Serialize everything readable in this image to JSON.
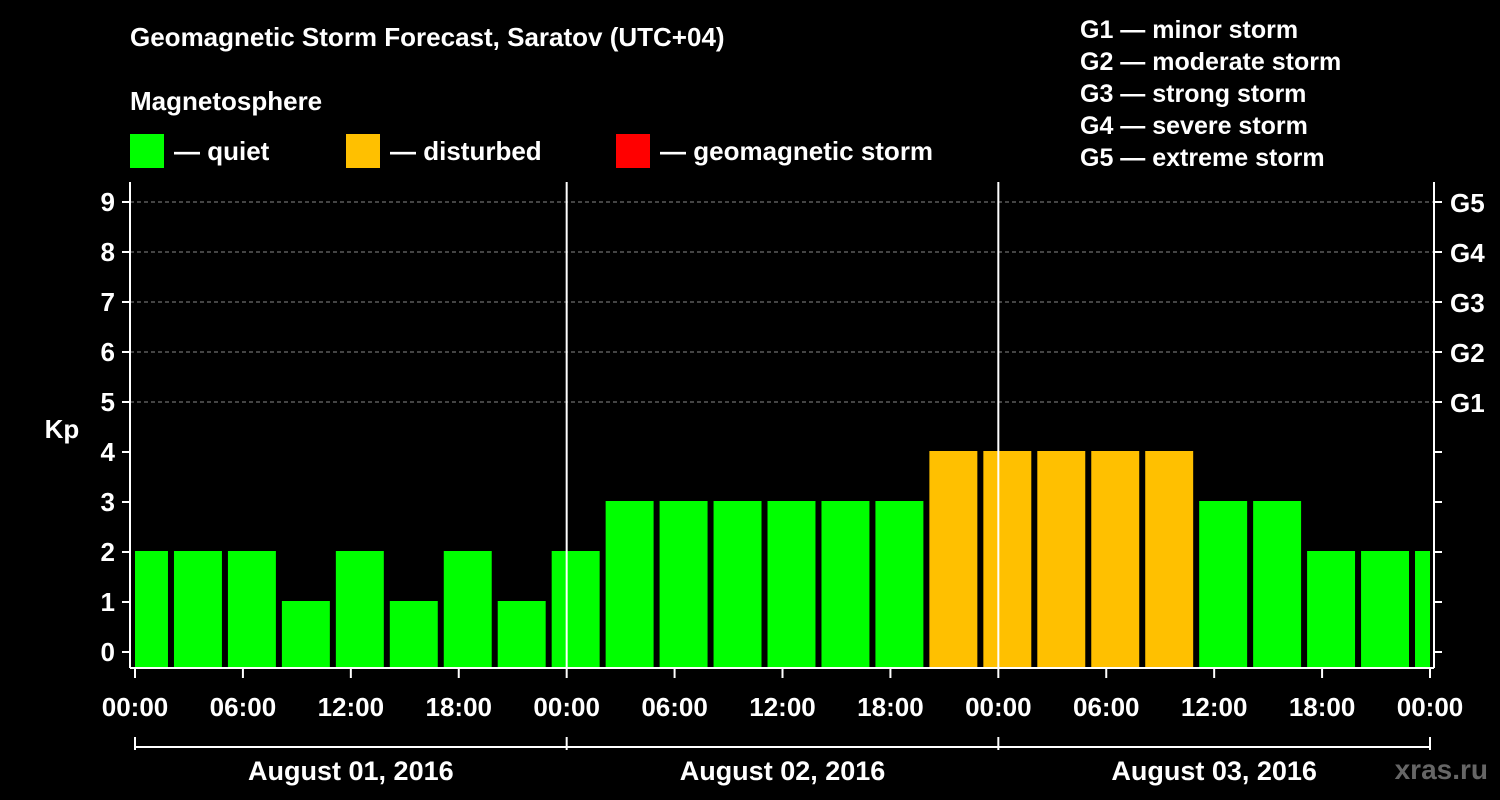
{
  "title": "Geomagnetic Storm Forecast, Saratov (UTC+04)",
  "legend": {
    "heading": "Magnetosphere",
    "items": [
      {
        "label": "— quiet",
        "color": "#00ff00"
      },
      {
        "label": "— disturbed",
        "color": "#ffc000"
      },
      {
        "label": "— geomagnetic storm",
        "color": "#ff0000"
      }
    ]
  },
  "storm_scale": [
    "G1 — minor storm",
    "G2 — moderate storm",
    "G3 — strong storm",
    "G4 — severe storm",
    "G5 — extreme storm"
  ],
  "watermark": "xras.ru",
  "chart_data": {
    "type": "bar",
    "ylabel": "Kp",
    "ylim": [
      0,
      9
    ],
    "y_ticks": [
      0,
      1,
      2,
      3,
      4,
      5,
      6,
      7,
      8,
      9
    ],
    "right_ticks": [
      {
        "kp": 5,
        "label": "G1"
      },
      {
        "kp": 6,
        "label": "G2"
      },
      {
        "kp": 7,
        "label": "G3"
      },
      {
        "kp": 8,
        "label": "G4"
      },
      {
        "kp": 9,
        "label": "G5"
      }
    ],
    "x_tick_labels": [
      "00:00",
      "06:00",
      "12:00",
      "18:00",
      "00:00",
      "06:00",
      "12:00",
      "18:00",
      "00:00",
      "06:00",
      "12:00",
      "18:00",
      "00:00"
    ],
    "days": [
      "August 01, 2016",
      "August 02, 2016",
      "August 03, 2016"
    ],
    "bins_start_hour": -1,
    "bin_hours": 3,
    "values": [
      2,
      2,
      2,
      1,
      2,
      1,
      2,
      1,
      2,
      3,
      3,
      3,
      3,
      3,
      3,
      4,
      4,
      4,
      4,
      4,
      3,
      3,
      2,
      2,
      2
    ],
    "status": [
      "quiet",
      "quiet",
      "quiet",
      "quiet",
      "quiet",
      "quiet",
      "quiet",
      "quiet",
      "quiet",
      "quiet",
      "quiet",
      "quiet",
      "quiet",
      "quiet",
      "quiet",
      "disturbed",
      "disturbed",
      "disturbed",
      "disturbed",
      "disturbed",
      "quiet",
      "quiet",
      "quiet",
      "quiet",
      "quiet"
    ],
    "grid": true,
    "legend_position": "top"
  }
}
